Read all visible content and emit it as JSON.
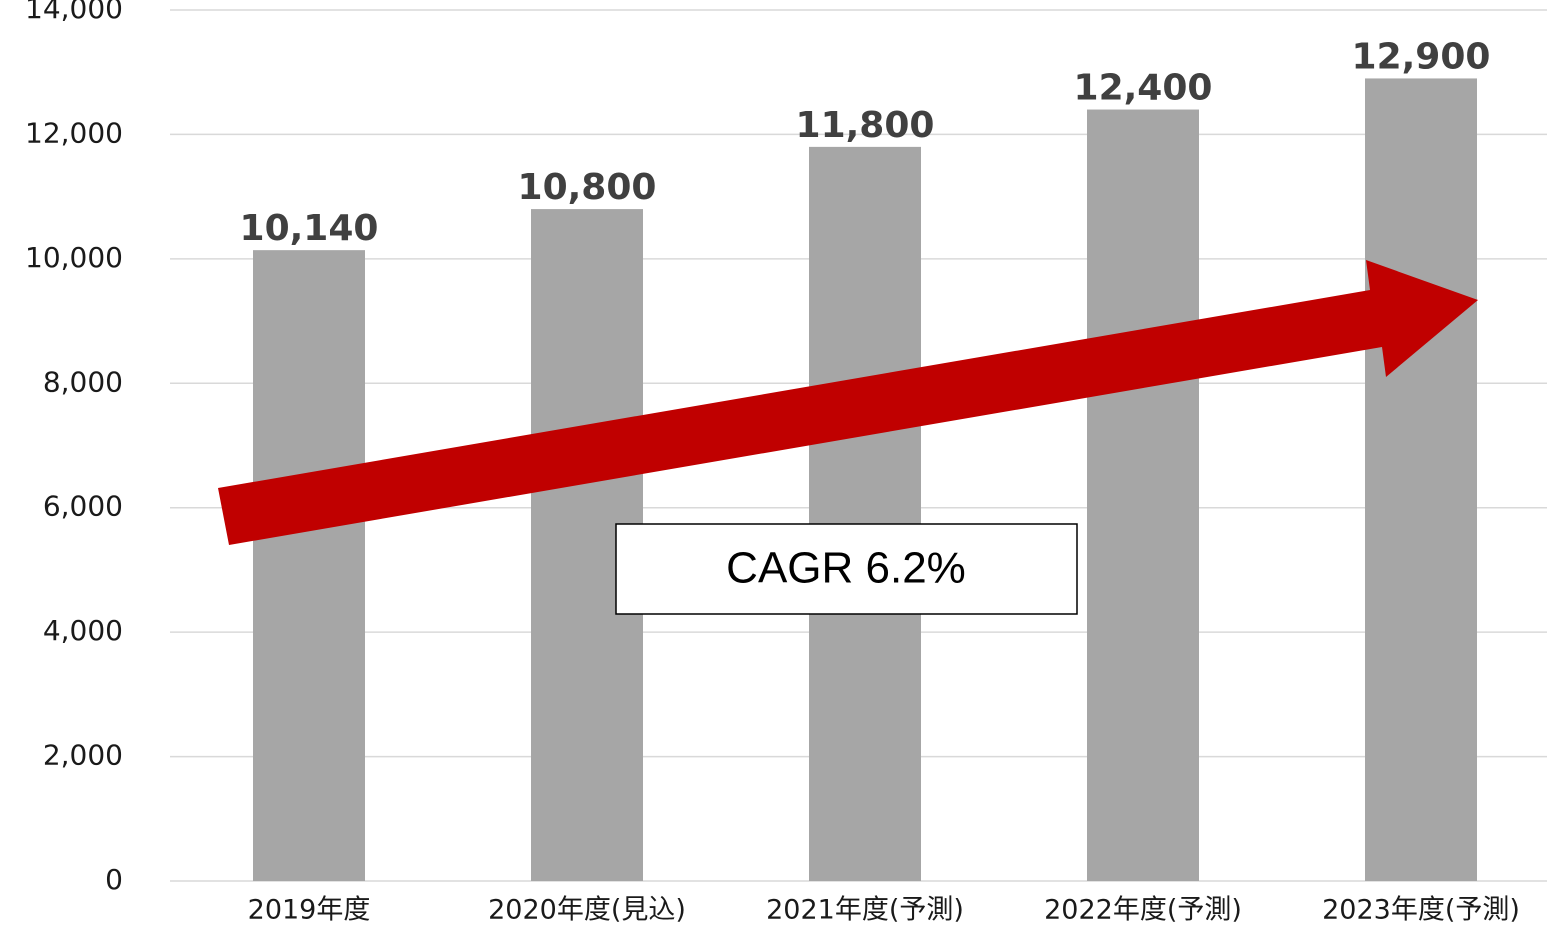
{
  "chart_data": {
    "type": "bar",
    "categories": [
      "2019年度",
      "2020年度(見込)",
      "2021年度(予測)",
      "2022年度(予測)",
      "2023年度(予測)"
    ],
    "values": [
      10140,
      10800,
      11800,
      12400,
      12900
    ],
    "value_labels": [
      "10,140",
      "10,800",
      "11,800",
      "12,400",
      "12,900"
    ],
    "color": "#a6a6a6",
    "ylim": [
      0,
      14000
    ],
    "yticks": [
      0,
      {
        "value": 2000,
        "label": "2,000"
      },
      {
        "value": 4000,
        "label": "4,000"
      },
      {
        "value": 6000,
        "label": "6,000"
      },
      {
        "value": 8000,
        "label": "8,000"
      },
      {
        "value": 10000,
        "label": "10,000"
      },
      {
        "value": 12000,
        "label": "12,000"
      },
      {
        "value": 14000,
        "label": "14,000"
      }
    ],
    "grid": true,
    "annotation": "CAGR 6.2%"
  }
}
